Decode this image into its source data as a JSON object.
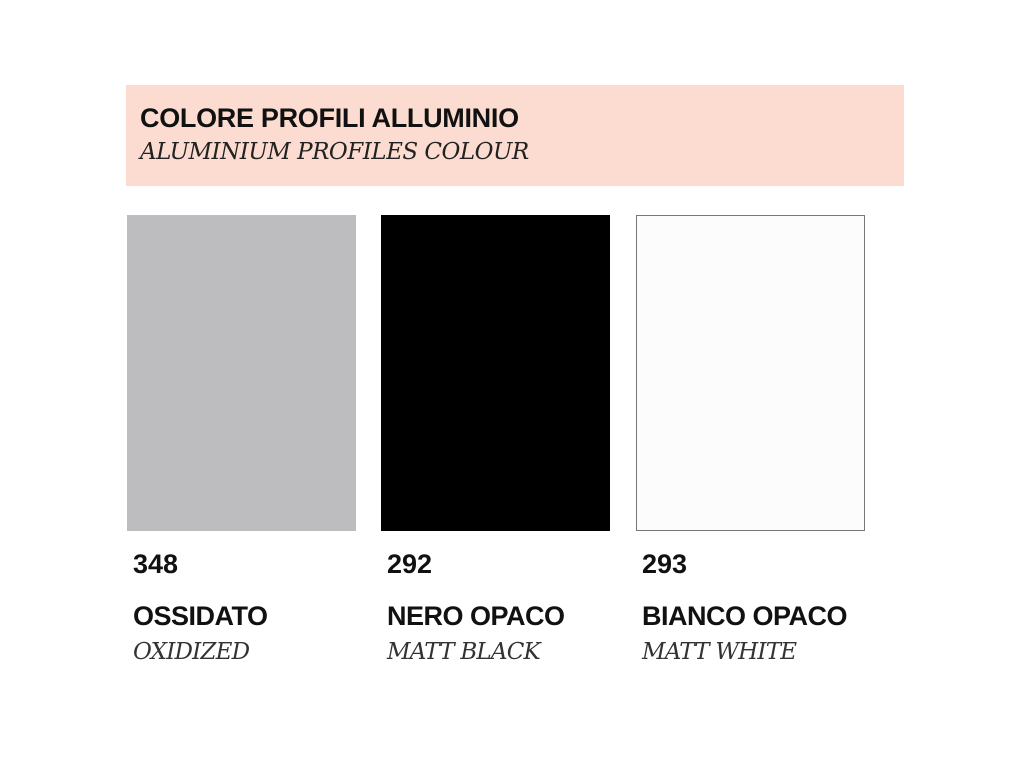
{
  "header": {
    "title": "COLORE PROFILI ALLUMINIO",
    "subtitle": "ALUMINIUM PROFILES COLOUR",
    "background": "#fcdcd0"
  },
  "swatches": [
    {
      "code": "348",
      "name": "OSSIDATO",
      "name_en": "OXIDIZED",
      "color": "#bdbdbf",
      "border": "none"
    },
    {
      "code": "292",
      "name": "NERO OPACO",
      "name_en": "MATT BLACK",
      "color": "#000000",
      "border": "none"
    },
    {
      "code": "293",
      "name": "BIANCO OPACO",
      "name_en": "MATT WHITE",
      "color": "#fcfcfc",
      "border": "#777777"
    }
  ]
}
